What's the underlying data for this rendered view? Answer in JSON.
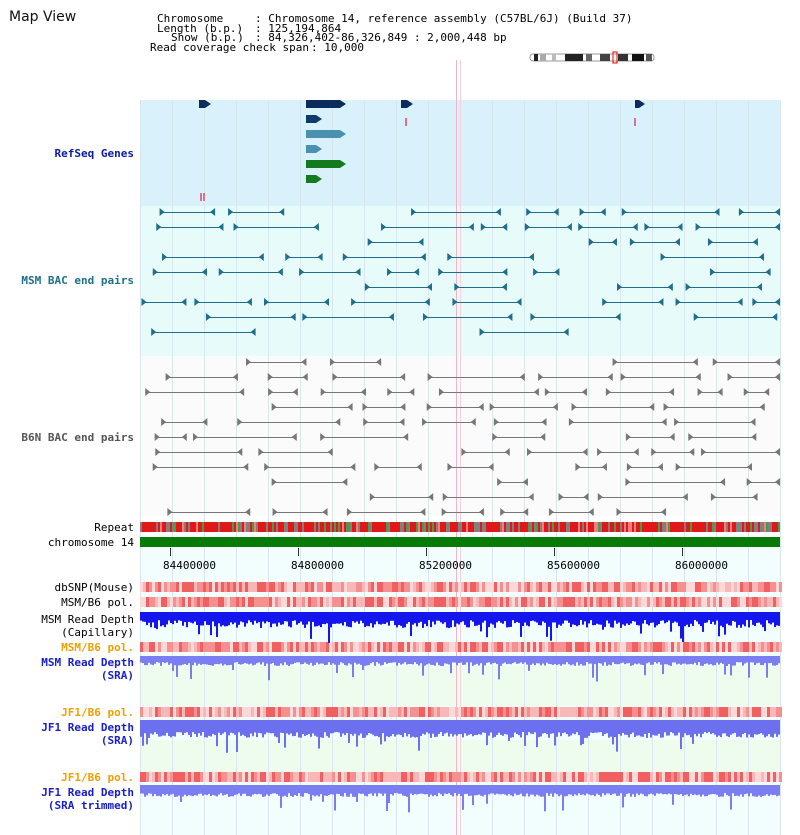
{
  "title": "Map View",
  "info": {
    "chromosome_label": "Chromosome",
    "chromosome_value": ": Chromosome 14, reference assembly (C57BL/6J) (Build 37)",
    "length_label": "Length (b.p.)",
    "length_value": ": 125,194,864",
    "show_label": "Show (b.p.)",
    "show_value": ": 84,326,402-86,326,849 : 2,000,448 bp",
    "coverage_label": "Read coverage check span",
    "coverage_value": ": 10,000"
  },
  "tracks": {
    "refseq": "RefSeq Genes",
    "msm_bac": "MSM BAC end pairs",
    "b6n_bac": "B6N BAC end pairs",
    "repeat": "Repeat",
    "chromosome": "chromosome 14",
    "dbsnp": "dbSNP(Mouse)",
    "msm_b6_pol": "MSM/B6 pol.",
    "msm_rd_cap_1": "MSM Read Depth",
    "msm_rd_cap_2": "(Capillary)",
    "msm_b6_pol2": "MSM/B6 pol.",
    "msm_rd_sra_1": "MSM Read Depth",
    "msm_rd_sra_2": "(SRA)",
    "jf1_b6_pol": "JF1/B6 pol.",
    "jf1_rd_sra_1": "JF1 Read Depth",
    "jf1_rd_sra_2": "(SRA)",
    "jf1_b6_pol2": "JF1/B6 pol.",
    "jf1_rd_trim_1": "JF1 Read Depth",
    "jf1_rd_trim_2": "(SRA trimmed)"
  },
  "axis_ticks": [
    "84400000",
    "84800000",
    "85200000",
    "85600000",
    "86000000"
  ],
  "colors": {
    "refseq_bg": "#d9f1fb",
    "bac_bg": "#e8fbfb",
    "repeat_red": "#e01010",
    "chromosome_green": "#087a08",
    "msm_rd_blue": "#1515ee",
    "sra_blue": "#7a7ef0",
    "label_orange": "#f0a000",
    "label_navy": "#0a1aa6"
  }
}
